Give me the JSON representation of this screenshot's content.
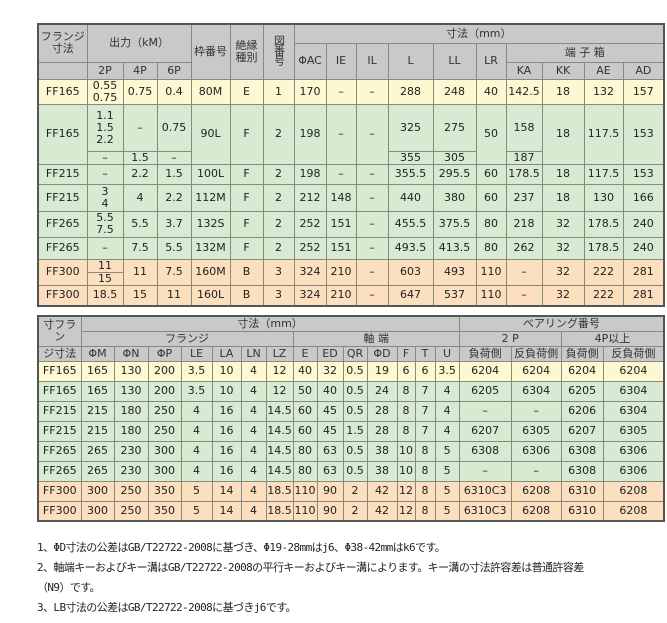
{
  "t1": {
    "header": {
      "flange": "フランジ\n寸法",
      "output": "出力（kM）",
      "p2": "2P",
      "p4": "4P",
      "p6": "6P",
      "frame": "枠番号",
      "insulation": "絶縁\n種別",
      "figure": "図番号",
      "dims": "寸法（mm）",
      "terminal": "端 子 箱",
      "cols": [
        "ΦAC",
        "IE",
        "IL",
        "L",
        "LL",
        "LR",
        "KA",
        "KK",
        "AE",
        "AD"
      ]
    },
    "rows": [
      {
        "tone": "y",
        "c": [
          "FF165",
          "0.55\n0.75",
          "0.75",
          "0.4",
          "80M",
          "E",
          "1",
          "170",
          "–",
          "–",
          "288",
          "248",
          "40",
          "142.5",
          "18",
          "132",
          "157"
        ]
      },
      {
        "tone": "g",
        "c": [
          "FF165",
          "1.1\n1.5\n2.2",
          "–",
          "0.75",
          "90L",
          "F",
          "2",
          "198",
          "–",
          "–",
          "325",
          "275",
          "50",
          "158",
          "18",
          "117.5",
          "153"
        ],
        "sub": {
          "p2": "–",
          "p4": "1.5",
          "p6": "–",
          "L": "355",
          "LL": "305",
          "KA": "187"
        }
      },
      {
        "tone": "g",
        "c": [
          "FF215",
          "–",
          "2.2",
          "1.5",
          "100L",
          "F",
          "2",
          "198",
          "–",
          "–",
          "355.5",
          "295.5",
          "60",
          "178.5",
          "18",
          "117.5",
          "153"
        ]
      },
      {
        "tone": "g",
        "c": [
          "FF215",
          "3\n4",
          "4",
          "2.2",
          "112M",
          "F",
          "2",
          "212",
          "148",
          "–",
          "440",
          "380",
          "60",
          "237",
          "18",
          "130",
          "166"
        ]
      },
      {
        "tone": "g",
        "c": [
          "FF265",
          "5.5\n7.5",
          "5.5",
          "3.7",
          "132S",
          "F",
          "2",
          "252",
          "151",
          "–",
          "455.5",
          "375.5",
          "80",
          "218",
          "32",
          "178.5",
          "240"
        ]
      },
      {
        "tone": "g",
        "c": [
          "FF265",
          "–",
          "7.5",
          "5.5",
          "132M",
          "F",
          "2",
          "252",
          "151",
          "–",
          "493.5",
          "413.5",
          "80",
          "262",
          "32",
          "178.5",
          "240"
        ]
      },
      {
        "tone": "o",
        "c": [
          "FF300",
          "11",
          "11",
          "7.5",
          "160M",
          "B",
          "3",
          "324",
          "210",
          "–",
          "603",
          "493",
          "110",
          "–",
          "32",
          "222",
          "281"
        ],
        "sub": {
          "p2": "15"
        }
      },
      {
        "tone": "o",
        "c": [
          "FF300",
          "18.5",
          "15",
          "11",
          "160L",
          "B",
          "3",
          "324",
          "210",
          "–",
          "647",
          "537",
          "110",
          "–",
          "32",
          "222",
          "281"
        ]
      }
    ]
  },
  "t2": {
    "header": {
      "flange_size_1": "寸フラン",
      "flange_size_2": "ジ寸法",
      "dims": "寸法（mm）",
      "flange": "フランジ",
      "shaft": "軸 端",
      "bearing": "ベアリング番号",
      "p2": "2 P",
      "p4up": "4P以上",
      "cols": [
        "ΦM",
        "ΦN",
        "ΦP",
        "LE",
        "LA",
        "LN",
        "LZ",
        "E",
        "ED",
        "QR",
        "ΦD",
        "F",
        "T",
        "U",
        "負荷側",
        "反負荷側",
        "負荷側",
        "反負荷側"
      ]
    },
    "rows": [
      {
        "tone": "y",
        "c": [
          "FF165",
          "165",
          "130",
          "200",
          "3.5",
          "10",
          "4",
          "12",
          "40",
          "32",
          "0.5",
          "19",
          "6",
          "6",
          "3.5",
          "6204",
          "6204",
          "6204",
          "6204"
        ]
      },
      {
        "tone": "g",
        "c": [
          "FF165",
          "165",
          "130",
          "200",
          "3.5",
          "10",
          "4",
          "12",
          "50",
          "40",
          "0.5",
          "24",
          "8",
          "7",
          "4",
          "6205",
          "6304",
          "6205",
          "6304"
        ]
      },
      {
        "tone": "g",
        "c": [
          "FF215",
          "215",
          "180",
          "250",
          "4",
          "16",
          "4",
          "14.5",
          "60",
          "45",
          "0.5",
          "28",
          "8",
          "7",
          "4",
          "–",
          "–",
          "6206",
          "6304"
        ]
      },
      {
        "tone": "g",
        "c": [
          "FF215",
          "215",
          "180",
          "250",
          "4",
          "16",
          "4",
          "14.5",
          "60",
          "45",
          "1.5",
          "28",
          "8",
          "7",
          "4",
          "6207",
          "6305",
          "6207",
          "6305"
        ]
      },
      {
        "tone": "g",
        "c": [
          "FF265",
          "265",
          "230",
          "300",
          "4",
          "16",
          "4",
          "14.5",
          "80",
          "63",
          "0.5",
          "38",
          "10",
          "8",
          "5",
          "6308",
          "6306",
          "6308",
          "6306"
        ]
      },
      {
        "tone": "g",
        "c": [
          "FF265",
          "265",
          "230",
          "300",
          "4",
          "16",
          "4",
          "14.5",
          "80",
          "63",
          "0.5",
          "38",
          "10",
          "8",
          "5",
          "–",
          "–",
          "6308",
          "6306"
        ]
      },
      {
        "tone": "o",
        "c": [
          "FF300",
          "300",
          "250",
          "350",
          "5",
          "14",
          "4",
          "18.5",
          "110",
          "90",
          "2",
          "42",
          "12",
          "8",
          "5",
          "6310C3",
          "6208",
          "6310",
          "6208"
        ]
      },
      {
        "tone": "o",
        "c": [
          "FF300",
          "300",
          "250",
          "350",
          "5",
          "14",
          "4",
          "18.5",
          "110",
          "90",
          "2",
          "42",
          "12",
          "8",
          "5",
          "6310C3",
          "6208",
          "6310",
          "6208"
        ]
      }
    ]
  },
  "notes": [
    "1、ΦD寸法の公差はGB/T22722-2008に基づき、Φ19-28mmはj6、Φ38-42mmはk6です。",
    "2、軸端キーおよびキー溝はGB/T22722-2008の平行キーおよびキー溝によります。キー溝の寸法許容差は普通許容差",
    "（N9）です。",
    "3、LB寸法の公差はGB/T22722-2008に基づきj6です。"
  ],
  "colors": {
    "header": "#c9c9c9",
    "row_yellow": "#fdf7d2",
    "row_green": "#d7ebd2",
    "row_orange": "#fbdfbf",
    "frame": "#555555"
  }
}
